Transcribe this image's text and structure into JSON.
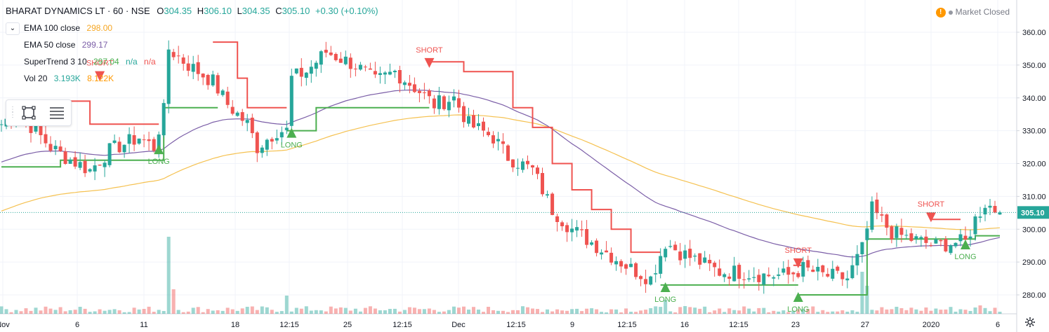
{
  "header": {
    "symbol": "BHARAT DYNAMICS LT · 60 · NSE",
    "open_label": "O",
    "open": "304.35",
    "high_label": "H",
    "high": "306.10",
    "low_label": "L",
    "low": "304.35",
    "close_label": "C",
    "close": "305.10",
    "change": "+0.30 (+0.10%)"
  },
  "indicators": [
    {
      "name": "EMA 100 close",
      "value1": "298.00",
      "value2": "",
      "value3": "",
      "color1": "#f5a623"
    },
    {
      "name": "EMA 50 close",
      "value1": "299.17",
      "value2": "",
      "value3": "",
      "color1": "#7b5ea7"
    },
    {
      "name": "SuperTrend 3 10",
      "value1": "297.04",
      "value2": "n/a",
      "value3": "n/a",
      "color1": "#4caf50",
      "color2": "#26a69a",
      "color3": "#ef5350"
    },
    {
      "name": "Vol 20",
      "value1": "3.193K",
      "value2": "8.122K",
      "value3": "",
      "color1": "#26a69a",
      "color2": "#ff9800"
    }
  ],
  "market_status": "Market Closed",
  "icons": {
    "status": "warning-icon",
    "settings": "gear-icon",
    "rect": "rectangle-tool-icon",
    "lines": "lines-tool-icon",
    "collapse": "chevron-down-icon"
  },
  "colors": {
    "up": "#26a69a",
    "down": "#ef5350",
    "ema100": "#f5c150",
    "ema50": "#7b5ea7",
    "st_up": "#4caf50",
    "st_down": "#ef5350",
    "price_line": "#26a69a"
  },
  "chart_data": {
    "type": "candlestick",
    "y_axis": {
      "ticks": [
        280,
        290,
        300,
        310,
        320,
        330,
        340,
        350,
        360
      ],
      "tick_labels": [
        "280.00",
        "290.00",
        "300.00",
        "310.00",
        "320.00",
        "330.00",
        "340.00",
        "350.00",
        "360.00"
      ],
      "range": [
        277.5,
        366
      ]
    },
    "x_axis": {
      "labels": [
        "Nov",
        "6",
        "11",
        "18",
        "12:15",
        "25",
        "12:15",
        "Dec",
        "12:15",
        "9",
        "12:15",
        "16",
        "12:15",
        "23",
        "27",
        "2020",
        "6"
      ]
    },
    "last_price": "305.10",
    "last_price_value": 305.1,
    "signals": [
      {
        "text": "SHORT",
        "type": "short",
        "index": 20,
        "price": 346
      },
      {
        "text": "LONG",
        "type": "long",
        "index": 32,
        "price": 325
      },
      {
        "text": "LONG",
        "type": "long",
        "index": 59,
        "price": 330
      },
      {
        "text": "SHORT",
        "type": "short",
        "index": 87,
        "price": 350
      },
      {
        "text": "LONG",
        "type": "long",
        "index": 135,
        "price": 283
      },
      {
        "text": "SHORT",
        "type": "short",
        "index": 162,
        "price": 289
      },
      {
        "text": "LONG",
        "type": "long",
        "index": 162,
        "price": 280
      },
      {
        "text": "SHORT",
        "type": "short",
        "index": 189,
        "price": 303
      },
      {
        "text": "LONG",
        "type": "long",
        "index": 196,
        "price": 296
      }
    ],
    "keyframes": [
      [
        0,
        332
      ],
      [
        3,
        336
      ],
      [
        5,
        333
      ],
      [
        10,
        325
      ],
      [
        13,
        322
      ],
      [
        18,
        318
      ],
      [
        22,
        324
      ],
      [
        28,
        328
      ],
      [
        31,
        325
      ],
      [
        33,
        336
      ],
      [
        34,
        355
      ],
      [
        38,
        350
      ],
      [
        43,
        345
      ],
      [
        46,
        338
      ],
      [
        50,
        332
      ],
      [
        52,
        325
      ],
      [
        56,
        330
      ],
      [
        58,
        330
      ],
      [
        59,
        346
      ],
      [
        62,
        348
      ],
      [
        66,
        354
      ],
      [
        72,
        350
      ],
      [
        76,
        345
      ],
      [
        80,
        348
      ],
      [
        85,
        342
      ],
      [
        88,
        338
      ],
      [
        92,
        340
      ],
      [
        95,
        332
      ],
      [
        100,
        328
      ],
      [
        103,
        322
      ],
      [
        108,
        318
      ],
      [
        112,
        306
      ],
      [
        116,
        300
      ],
      [
        120,
        296
      ],
      [
        124,
        292
      ],
      [
        128,
        288
      ],
      [
        132,
        285
      ],
      [
        135,
        296
      ],
      [
        138,
        293
      ],
      [
        142,
        290
      ],
      [
        146,
        287
      ],
      [
        150,
        287
      ],
      [
        155,
        286
      ],
      [
        160,
        286
      ],
      [
        163,
        288
      ],
      [
        167,
        286
      ],
      [
        172,
        285
      ],
      [
        175,
        294
      ],
      [
        176,
        300
      ],
      [
        177,
        306
      ],
      [
        181,
        299
      ],
      [
        185,
        297
      ],
      [
        190,
        295
      ],
      [
        194,
        296
      ],
      [
        196,
        296
      ],
      [
        198,
        303
      ],
      [
        200,
        308
      ],
      [
        203,
        305
      ]
    ],
    "volume_spikes": [
      [
        34,
        11
      ],
      [
        35,
        3.5
      ],
      [
        58,
        2.6
      ],
      [
        135,
        2
      ],
      [
        175,
        6
      ],
      [
        176,
        4
      ],
      [
        199,
        1.2
      ]
    ],
    "supertrend": [
      {
        "trend": "up",
        "points": [
          [
            0,
            319
          ],
          [
            11,
            319
          ],
          [
            12,
            321
          ],
          [
            32,
            321
          ],
          [
            33,
            337
          ],
          [
            43,
            337
          ],
          [
            44,
            337
          ]
        ]
      },
      {
        "trend": "down",
        "points": [
          [
            12,
            339
          ],
          [
            18,
            332
          ],
          [
            31,
            332
          ],
          [
            32,
            332
          ]
        ]
      },
      {
        "trend": "down",
        "points": [
          [
            43,
            357
          ],
          [
            48,
            346
          ],
          [
            50,
            337
          ],
          [
            57,
            337
          ],
          [
            58,
            337
          ]
        ]
      },
      {
        "trend": "up",
        "points": [
          [
            58,
            330
          ],
          [
            62,
            330
          ],
          [
            64,
            337
          ],
          [
            86,
            337
          ],
          [
            87,
            337
          ]
        ]
      },
      {
        "trend": "down",
        "points": [
          [
            87,
            351
          ],
          [
            92,
            351
          ],
          [
            94,
            348
          ],
          [
            100,
            348
          ],
          [
            104,
            337
          ],
          [
            108,
            331
          ],
          [
            112,
            320
          ],
          [
            116,
            312
          ],
          [
            120,
            306
          ],
          [
            124,
            300
          ],
          [
            128,
            293
          ],
          [
            132,
            293
          ],
          [
            134,
            293
          ]
        ]
      },
      {
        "trend": "up",
        "points": [
          [
            134,
            283
          ],
          [
            162,
            283
          ]
        ]
      },
      {
        "trend": "down",
        "points": [
          [
            161,
            289
          ],
          [
            163,
            289
          ]
        ]
      },
      {
        "trend": "up",
        "points": [
          [
            162,
            280
          ],
          [
            174,
            280
          ],
          [
            176,
            297
          ],
          [
            196,
            297
          ],
          [
            198,
            298
          ],
          [
            203,
            298
          ]
        ]
      },
      {
        "trend": "down",
        "points": [
          [
            189,
            303
          ],
          [
            195,
            303
          ]
        ]
      }
    ]
  }
}
